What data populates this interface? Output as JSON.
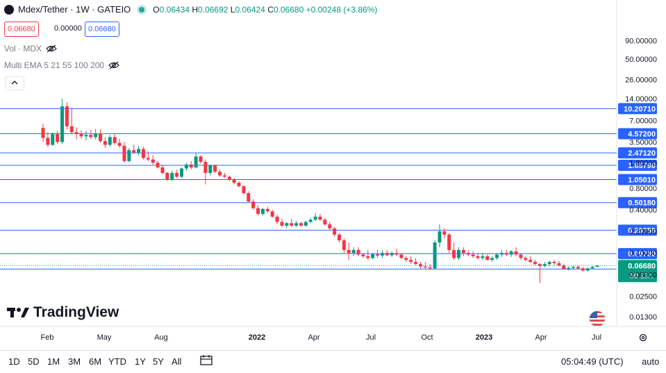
{
  "header": {
    "symbol": "Mdex/Tether · 1W · GATEIO",
    "o_label": "O",
    "o": "0.06434",
    "h_label": "H",
    "h": "0.06692",
    "l_label": "L",
    "l": "0.06424",
    "c_label": "C",
    "c": "0.06680",
    "change": "+0.00248 (+3.86%)"
  },
  "price_boxes": {
    "bid": "0.06680",
    "spread": "0.00000",
    "ask": "0.06680"
  },
  "indicators": {
    "vol": "Vol · MDX",
    "ema": "Multi EMA 5 21 55 100 200"
  },
  "brand": "TradingView",
  "bottom": {
    "ranges": [
      "1D",
      "5D",
      "1M",
      "3M",
      "6M",
      "YTD",
      "1Y",
      "5Y",
      "All"
    ],
    "clock": "05:04:49 (UTC)",
    "auto": "auto"
  },
  "colors": {
    "up": "#089981",
    "down": "#f23645",
    "hline": "#2962ff",
    "axis_text": "#131722"
  },
  "chart_data": {
    "type": "candlestick",
    "y_scale": "log",
    "y_ticks": [
      "90.00000",
      "50.00000",
      "26.00000",
      "14.00000",
      "7.00000",
      "3.50000",
      "1.80000",
      "0.80000",
      "0.40000",
      "0.20000",
      "0.10000",
      "0.05000",
      "0.02500",
      "0.01300"
    ],
    "x_ticks": [
      "Feb",
      "May",
      "Aug",
      "2022",
      "Apr",
      "Jul",
      "Oct",
      "2023",
      "Apr",
      "Jul"
    ],
    "horizontal_levels": [
      "10.20710",
      "4.57200",
      "2.47120",
      "1.65790",
      "1.05010",
      "0.50180",
      "0.20750",
      "0.09780",
      "0.05958"
    ],
    "last_price": "0.06680",
    "countdown": "5d 19h",
    "ohlc_weekly": [
      [
        5.5,
        6.3,
        3.5,
        4.0
      ],
      [
        4.0,
        4.8,
        3.0,
        3.2
      ],
      [
        3.2,
        4.8,
        3.1,
        4.5
      ],
      [
        4.5,
        5.0,
        3.3,
        3.5
      ],
      [
        3.5,
        14.0,
        3.3,
        11.0
      ],
      [
        11.0,
        12.5,
        5.2,
        5.8
      ],
      [
        5.8,
        10.5,
        4.6,
        4.8
      ],
      [
        4.8,
        5.6,
        3.8,
        4.6
      ],
      [
        4.6,
        5.1,
        3.9,
        4.2
      ],
      [
        4.2,
        5.0,
        3.7,
        4.4
      ],
      [
        4.4,
        5.2,
        3.9,
        4.1
      ],
      [
        4.1,
        5.3,
        3.8,
        4.6
      ],
      [
        4.6,
        5.3,
        3.4,
        3.6
      ],
      [
        3.6,
        4.1,
        2.9,
        3.2
      ],
      [
        3.2,
        4.4,
        3.0,
        4.1
      ],
      [
        4.1,
        4.6,
        3.2,
        3.4
      ],
      [
        3.4,
        3.9,
        2.9,
        3.1
      ],
      [
        3.1,
        3.5,
        1.8,
        1.9
      ],
      [
        1.9,
        2.9,
        1.8,
        2.7
      ],
      [
        2.7,
        3.2,
        2.4,
        2.5
      ],
      [
        2.5,
        3.1,
        2.3,
        2.8
      ],
      [
        2.8,
        3.0,
        2.0,
        2.1
      ],
      [
        2.1,
        2.6,
        1.9,
        2.0
      ],
      [
        2.0,
        2.3,
        1.7,
        1.8
      ],
      [
        1.8,
        1.9,
        1.5,
        1.55
      ],
      [
        1.55,
        1.7,
        1.25,
        1.3
      ],
      [
        1.3,
        1.35,
        1.0,
        1.05
      ],
      [
        1.05,
        1.4,
        1.0,
        1.3
      ],
      [
        1.3,
        1.45,
        1.1,
        1.15
      ],
      [
        1.15,
        1.55,
        1.1,
        1.5
      ],
      [
        1.5,
        1.8,
        1.4,
        1.7
      ],
      [
        1.7,
        1.9,
        1.45,
        1.55
      ],
      [
        1.55,
        2.5,
        1.5,
        2.2
      ],
      [
        2.2,
        2.3,
        1.75,
        1.85
      ],
      [
        1.85,
        2.0,
        0.9,
        1.3
      ],
      [
        1.3,
        1.7,
        1.2,
        1.65
      ],
      [
        1.65,
        1.7,
        1.3,
        1.35
      ],
      [
        1.35,
        1.45,
        1.15,
        1.2
      ],
      [
        1.2,
        1.3,
        1.1,
        1.15
      ],
      [
        1.15,
        1.2,
        1.0,
        1.05
      ],
      [
        1.05,
        1.1,
        0.9,
        0.95
      ],
      [
        0.95,
        1.0,
        0.82,
        0.85
      ],
      [
        0.85,
        0.88,
        0.65,
        0.68
      ],
      [
        0.68,
        0.72,
        0.5,
        0.52
      ],
      [
        0.52,
        0.56,
        0.4,
        0.42
      ],
      [
        0.42,
        0.46,
        0.33,
        0.35
      ],
      [
        0.35,
        0.42,
        0.33,
        0.41
      ],
      [
        0.41,
        0.44,
        0.36,
        0.38
      ],
      [
        0.38,
        0.4,
        0.31,
        0.32
      ],
      [
        0.32,
        0.34,
        0.25,
        0.27
      ],
      [
        0.27,
        0.3,
        0.23,
        0.24
      ],
      [
        0.24,
        0.27,
        0.22,
        0.26
      ],
      [
        0.26,
        0.3,
        0.23,
        0.24
      ],
      [
        0.24,
        0.28,
        0.23,
        0.26
      ],
      [
        0.26,
        0.27,
        0.23,
        0.24
      ],
      [
        0.24,
        0.28,
        0.23,
        0.27
      ],
      [
        0.27,
        0.31,
        0.26,
        0.29
      ],
      [
        0.29,
        0.36,
        0.28,
        0.32
      ],
      [
        0.32,
        0.35,
        0.28,
        0.29
      ],
      [
        0.29,
        0.31,
        0.24,
        0.25
      ],
      [
        0.25,
        0.27,
        0.21,
        0.22
      ],
      [
        0.22,
        0.23,
        0.17,
        0.18
      ],
      [
        0.18,
        0.19,
        0.14,
        0.15
      ],
      [
        0.15,
        0.16,
        0.1,
        0.11
      ],
      [
        0.11,
        0.14,
        0.08,
        0.1
      ],
      [
        0.1,
        0.12,
        0.09,
        0.11
      ],
      [
        0.11,
        0.12,
        0.09,
        0.095
      ],
      [
        0.095,
        0.1,
        0.085,
        0.09
      ],
      [
        0.09,
        0.11,
        0.08,
        0.085
      ],
      [
        0.085,
        0.1,
        0.082,
        0.096
      ],
      [
        0.096,
        0.11,
        0.085,
        0.092
      ],
      [
        0.092,
        0.11,
        0.085,
        0.1
      ],
      [
        0.1,
        0.11,
        0.09,
        0.093
      ],
      [
        0.093,
        0.105,
        0.088,
        0.1
      ],
      [
        0.1,
        0.115,
        0.09,
        0.095
      ],
      [
        0.095,
        0.1,
        0.082,
        0.085
      ],
      [
        0.085,
        0.09,
        0.075,
        0.08
      ],
      [
        0.08,
        0.09,
        0.07,
        0.075
      ],
      [
        0.075,
        0.085,
        0.068,
        0.07
      ],
      [
        0.07,
        0.075,
        0.06,
        0.065
      ],
      [
        0.065,
        0.075,
        0.059,
        0.063
      ],
      [
        0.063,
        0.07,
        0.058,
        0.061
      ],
      [
        0.061,
        0.15,
        0.06,
        0.14
      ],
      [
        0.14,
        0.25,
        0.12,
        0.2
      ],
      [
        0.2,
        0.22,
        0.16,
        0.18
      ],
      [
        0.18,
        0.19,
        0.1,
        0.11
      ],
      [
        0.11,
        0.14,
        0.08,
        0.085
      ],
      [
        0.085,
        0.12,
        0.08,
        0.11
      ],
      [
        0.11,
        0.12,
        0.09,
        0.1
      ],
      [
        0.1,
        0.11,
        0.09,
        0.095
      ],
      [
        0.095,
        0.105,
        0.085,
        0.09
      ],
      [
        0.09,
        0.1,
        0.082,
        0.085
      ],
      [
        0.085,
        0.1,
        0.08,
        0.09
      ],
      [
        0.09,
        0.095,
        0.078,
        0.08
      ],
      [
        0.08,
        0.09,
        0.075,
        0.085
      ],
      [
        0.085,
        0.1,
        0.08,
        0.095
      ],
      [
        0.095,
        0.11,
        0.088,
        0.1
      ],
      [
        0.1,
        0.11,
        0.09,
        0.095
      ],
      [
        0.095,
        0.11,
        0.088,
        0.105
      ],
      [
        0.105,
        0.12,
        0.09,
        0.095
      ],
      [
        0.095,
        0.1,
        0.08,
        0.085
      ],
      [
        0.085,
        0.09,
        0.077,
        0.08
      ],
      [
        0.08,
        0.09,
        0.072,
        0.075
      ],
      [
        0.075,
        0.08,
        0.068,
        0.07
      ],
      [
        0.07,
        0.072,
        0.038,
        0.066
      ],
      [
        0.066,
        0.075,
        0.063,
        0.07
      ],
      [
        0.07,
        0.078,
        0.066,
        0.075
      ],
      [
        0.075,
        0.08,
        0.068,
        0.072
      ],
      [
        0.072,
        0.078,
        0.065,
        0.067
      ],
      [
        0.067,
        0.07,
        0.058,
        0.06
      ],
      [
        0.06,
        0.065,
        0.057,
        0.062
      ],
      [
        0.062,
        0.066,
        0.058,
        0.064
      ],
      [
        0.064,
        0.067,
        0.06,
        0.061
      ],
      [
        0.061,
        0.064,
        0.055,
        0.057
      ],
      [
        0.057,
        0.063,
        0.055,
        0.061
      ],
      [
        0.061,
        0.066,
        0.059,
        0.064
      ],
      [
        0.064,
        0.0669,
        0.0642,
        0.0668
      ]
    ]
  }
}
